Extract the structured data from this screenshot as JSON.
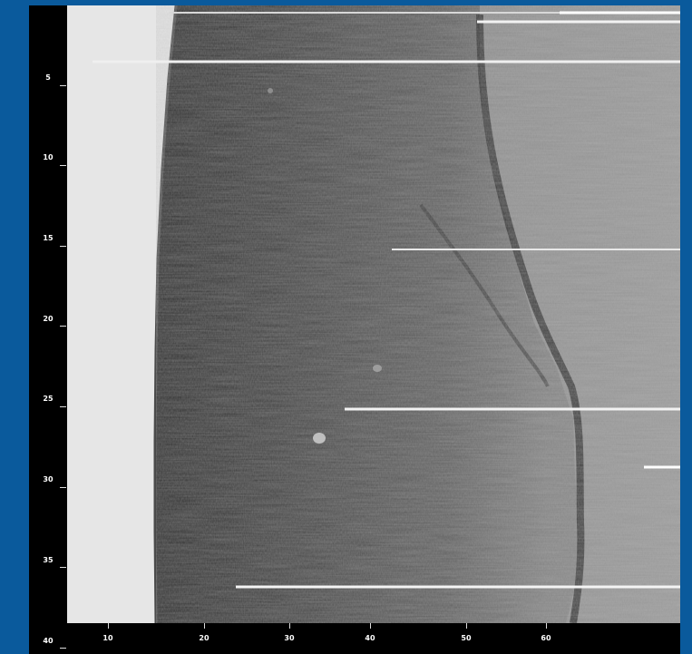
{
  "y_axis": {
    "ticks": [
      "5",
      "10",
      "15",
      "20",
      "25",
      "30",
      "35",
      "40"
    ]
  },
  "x_axis": {
    "ticks": [
      "10",
      "20",
      "30",
      "40",
      "50",
      "60"
    ]
  },
  "colors": {
    "page_background": "#0a5a9c",
    "frame": "#000000",
    "scan_light": "#e4e4e4",
    "scan_dark": "#1e1e1e",
    "scan_mid": "#8a8a8a"
  }
}
